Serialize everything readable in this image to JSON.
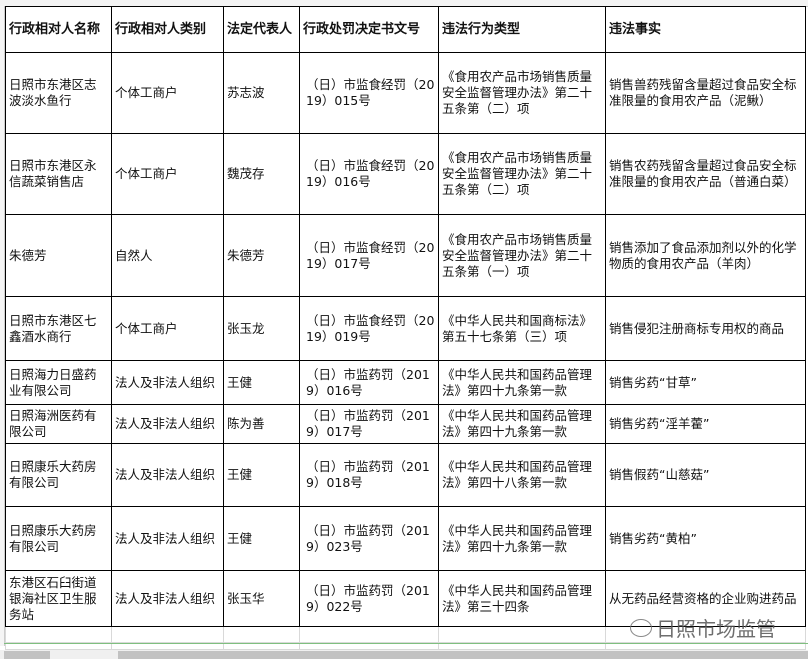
{
  "columns": [
    "行政相对人名称",
    "行政相对人类别",
    "法定代表人",
    "行政处罚决定书文号",
    "违法行为类型",
    "违法事实"
  ],
  "rows": [
    [
      "日照市东港区志波淡水鱼行",
      "个体工商户",
      "苏志波",
      "（日）市监食经罚（2019）015号",
      "《食用农产品市场销售质量安全监督管理办法》第二十五条第（二）项",
      "销售兽药残留含量超过食品安全标准限量的食用农产品（泥鳅）"
    ],
    [
      "日照市东港区永信蔬菜销售店",
      "个体工商户",
      "魏茂存",
      "（日）市监食经罚（2019）016号",
      "《食用农产品市场销售质量安全监督管理办法》第二十五条第（二）项",
      "销售农药残留含量超过食品安全标准限量的食用农产品（普通白菜）"
    ],
    [
      "朱德芳",
      "自然人",
      "朱德芳",
      "（日）市监食经罚（2019）017号",
      "《食用农产品市场销售质量安全监督管理办法》第二十五条第（一）项",
      "销售添加了食品添加剂以外的化学物质的食用农产品（羊肉）"
    ],
    [
      "日照市东港区七鑫酒水商行",
      "个体工商户",
      "张玉龙",
      "（日）市监食经罚（2019）019号",
      "《中华人民共和国商标法》第五十七条第（三）项",
      "销售侵犯注册商标专用权的商品"
    ],
    [
      "日照海力日盛药业有限公司",
      "法人及非法人组织",
      "王健",
      "（日）市监药罚（2019）016号",
      "《中华人民共和国药品管理法》第四十九条第一款",
      "销售劣药“甘草”"
    ],
    [
      "日照海洲医药有限公司",
      "法人及非法人组织",
      "陈为善",
      "（日）市监药罚（2019）017号",
      "《中华人民共和国药品管理法》第四十九条第一款",
      "销售劣药“淫羊藿”"
    ],
    [
      "日照康乐大药房有限公司",
      "法人及非法人组织",
      "王健",
      "（日）市监药罚（2019）018号",
      "《中华人民共和国药品管理法》第四十八条第一款",
      "销售假药“山慈菇”"
    ],
    [
      "日照康乐大药房有限公司",
      "法人及非法人组织",
      "王健",
      "（日）市监药罚（2019）023号",
      "《中华人民共和国药品管理法》第四十九条第一款",
      "销售劣药“黄柏”"
    ],
    [
      "东港区石臼街道银海社区卫生服务站",
      "法人及非法人组织",
      "张玉华",
      "（日）市监药罚（2019）022号",
      "《中华人民共和国药品管理法》第三十四条",
      "从无药品经营资格的企业购进药品"
    ]
  ],
  "watermark": "日照市场监管"
}
